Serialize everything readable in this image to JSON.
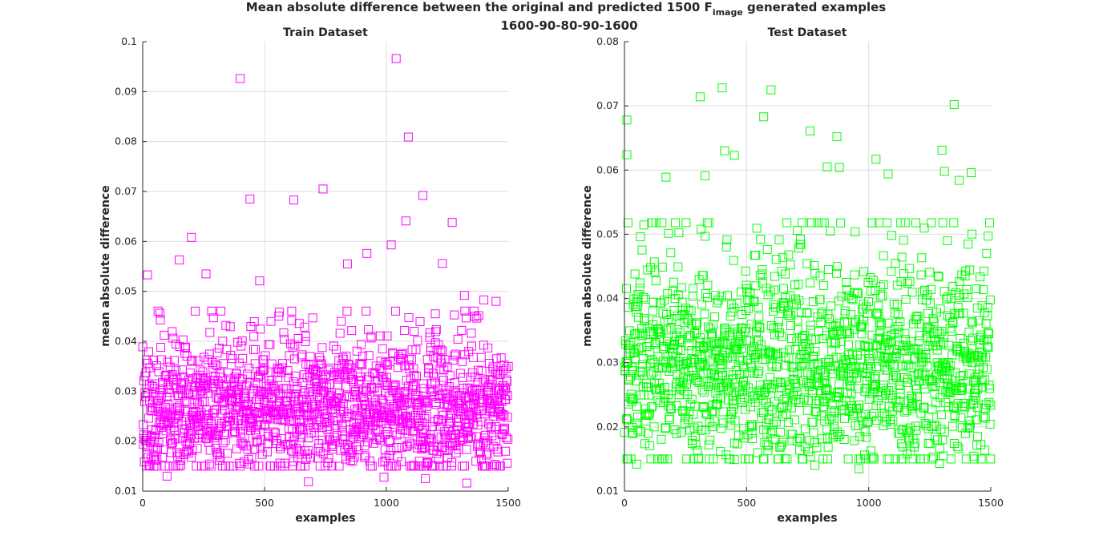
{
  "figure": {
    "title_line1_prefix": "Mean absolute difference between the original and predicted 1500 F",
    "title_line1_subscript": "image",
    "title_line1_suffix": " generated examples",
    "title_line2": "1600-90-80-90-1600"
  },
  "chart_data": [
    {
      "type": "scatter",
      "title": "Train Dataset",
      "xlabel": "examples",
      "ylabel": "mean absolute difference",
      "xlim": [
        0,
        1500
      ],
      "ylim": [
        0.01,
        0.1
      ],
      "xticks": [
        0,
        500,
        1000,
        1500
      ],
      "yticks": [
        0.01,
        0.02,
        0.03,
        0.04,
        0.05,
        0.06,
        0.07,
        0.08,
        0.09,
        0.1
      ],
      "ytick_labels": [
        "0.01",
        "0.02",
        "0.03",
        "0.04",
        "0.05",
        "0.06",
        "0.07",
        "0.08",
        "0.09",
        "0.1"
      ],
      "grid": true,
      "marker": "square",
      "color": "#ff00ff",
      "n_points": 1500,
      "distribution": {
        "bulk_range": [
          0.015,
          0.042
        ],
        "bulk_center": 0.026,
        "seed": 11
      },
      "points": [
        {
          "x": 20,
          "y": 0.0533
        },
        {
          "x": 150,
          "y": 0.0563
        },
        {
          "x": 200,
          "y": 0.0608
        },
        {
          "x": 260,
          "y": 0.0535
        },
        {
          "x": 400,
          "y": 0.0926
        },
        {
          "x": 440,
          "y": 0.0685
        },
        {
          "x": 480,
          "y": 0.0521
        },
        {
          "x": 620,
          "y": 0.0683
        },
        {
          "x": 740,
          "y": 0.0705
        },
        {
          "x": 840,
          "y": 0.0555
        },
        {
          "x": 920,
          "y": 0.0576
        },
        {
          "x": 1020,
          "y": 0.0593
        },
        {
          "x": 1040,
          "y": 0.0966
        },
        {
          "x": 1080,
          "y": 0.0641
        },
        {
          "x": 1090,
          "y": 0.0809
        },
        {
          "x": 1150,
          "y": 0.0692
        },
        {
          "x": 1230,
          "y": 0.0556
        },
        {
          "x": 1270,
          "y": 0.0638
        },
        {
          "x": 1320,
          "y": 0.0492
        },
        {
          "x": 1400,
          "y": 0.0483
        },
        {
          "x": 1450,
          "y": 0.048
        },
        {
          "x": 680,
          "y": 0.0119
        },
        {
          "x": 1330,
          "y": 0.0116
        },
        {
          "x": 1160,
          "y": 0.0125
        },
        {
          "x": 990,
          "y": 0.0128
        },
        {
          "x": 100,
          "y": 0.013
        }
      ]
    },
    {
      "type": "scatter",
      "title": "Test Dataset",
      "xlabel": "examples",
      "ylabel": "mean absolute difference",
      "xlim": [
        0,
        1500
      ],
      "ylim": [
        0.01,
        0.08
      ],
      "xticks": [
        0,
        500,
        1000,
        1500
      ],
      "yticks": [
        0.01,
        0.02,
        0.03,
        0.04,
        0.05,
        0.06,
        0.07,
        0.08
      ],
      "ytick_labels": [
        "0.01",
        "0.02",
        "0.03",
        "0.04",
        "0.05",
        "0.06",
        "0.07",
        "0.08"
      ],
      "grid": true,
      "marker": "square",
      "color": "#00ff00",
      "n_points": 1500,
      "distribution": {
        "bulk_range": [
          0.015,
          0.047
        ],
        "bulk_center": 0.029,
        "seed": 23
      },
      "points": [
        {
          "x": 10,
          "y": 0.0678
        },
        {
          "x": 10,
          "y": 0.0624
        },
        {
          "x": 310,
          "y": 0.0714
        },
        {
          "x": 400,
          "y": 0.0728
        },
        {
          "x": 600,
          "y": 0.0725
        },
        {
          "x": 570,
          "y": 0.0683
        },
        {
          "x": 760,
          "y": 0.0661
        },
        {
          "x": 870,
          "y": 0.0652
        },
        {
          "x": 1350,
          "y": 0.0702
        },
        {
          "x": 1300,
          "y": 0.0631
        },
        {
          "x": 410,
          "y": 0.063
        },
        {
          "x": 450,
          "y": 0.0623
        },
        {
          "x": 1030,
          "y": 0.0617
        },
        {
          "x": 830,
          "y": 0.0605
        },
        {
          "x": 880,
          "y": 0.0604
        },
        {
          "x": 170,
          "y": 0.0589
        },
        {
          "x": 330,
          "y": 0.0591
        },
        {
          "x": 1420,
          "y": 0.0596
        },
        {
          "x": 1080,
          "y": 0.0594
        },
        {
          "x": 1310,
          "y": 0.0598
        },
        {
          "x": 1370,
          "y": 0.0584
        },
        {
          "x": 960,
          "y": 0.0135
        },
        {
          "x": 1290,
          "y": 0.0143
        },
        {
          "x": 50,
          "y": 0.0142
        },
        {
          "x": 450,
          "y": 0.0149
        },
        {
          "x": 780,
          "y": 0.014
        }
      ]
    }
  ]
}
